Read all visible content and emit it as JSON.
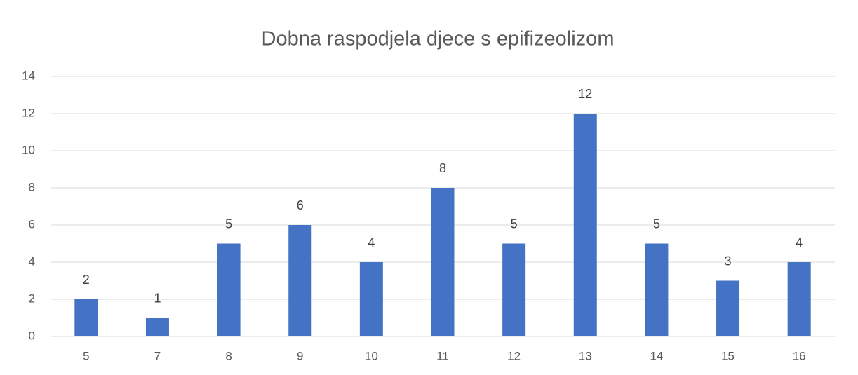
{
  "chart_data": {
    "type": "bar",
    "title": "Dobna raspodjela djece s epifizeolizom",
    "categories": [
      "5",
      "7",
      "8",
      "9",
      "10",
      "11",
      "12",
      "13",
      "14",
      "15",
      "16"
    ],
    "values": [
      2,
      1,
      5,
      6,
      4,
      8,
      5,
      12,
      5,
      3,
      4
    ],
    "color": "#4472c4",
    "ylim": [
      0,
      14
    ],
    "yticks": [
      0,
      2,
      4,
      6,
      8,
      10,
      12,
      14
    ],
    "grid": true
  }
}
